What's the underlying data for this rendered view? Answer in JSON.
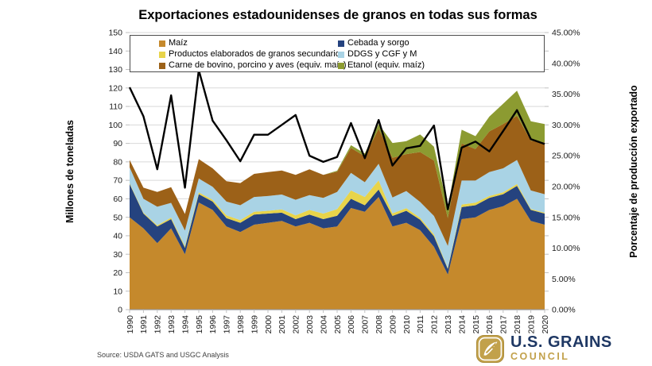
{
  "title": "Exportaciones estadounidenses de granos en todas sus formas",
  "source": "Source: USDA GATS and USGC Analysis",
  "logo": {
    "line1": "U.S. GRAINS",
    "line2": "COUNCIL",
    "gold": "#c2a14b",
    "navy": "#1f3864"
  },
  "chart_data": {
    "type": "area",
    "stacked": true,
    "title": "Exportaciones estadounidenses de granos en todas sus formas",
    "grid": true,
    "legend_position": "top",
    "left_axis": {
      "label": "Millones de toneladas",
      "min": 0,
      "max": 150,
      "step": 10
    },
    "right_axis": {
      "label": "Porcentaje de producción exportado",
      "min": 0,
      "max": 45,
      "step": 5
    },
    "years": [
      1990,
      1991,
      1992,
      1993,
      1994,
      1995,
      1996,
      1997,
      1998,
      1999,
      2000,
      2001,
      2002,
      2003,
      2004,
      2005,
      2006,
      2007,
      2008,
      2009,
      2010,
      2011,
      2012,
      2013,
      2014,
      2015,
      2016,
      2017,
      2018,
      2019,
      2020
    ],
    "series": [
      {
        "id": "maiz",
        "name": "Maíz",
        "color": "#c5892c",
        "values": [
          50,
          44,
          36,
          44,
          30,
          58,
          54,
          45,
          42,
          46,
          47,
          48,
          45,
          47,
          44,
          45,
          55,
          53,
          61,
          45,
          47,
          43,
          34,
          19,
          49,
          50,
          54,
          56,
          60,
          48,
          46
        ]
      },
      {
        "id": "cebada-y-sorgo",
        "name": "Cebada y sorgo",
        "color": "#25437f",
        "values": [
          18,
          8,
          9,
          5,
          3.5,
          4.5,
          4.5,
          4.5,
          5,
          5.5,
          5,
          4.5,
          4,
          4.5,
          5,
          5.8,
          5,
          3.5,
          4,
          5.7,
          6.5,
          5.7,
          5.7,
          3,
          6.5,
          6.5,
          6.5,
          6.5,
          7,
          6,
          6
        ]
      },
      {
        "id": "productos-elaborados",
        "name": "Productos elaborados de granos secundarios",
        "color": "#e8d44a",
        "values": [
          0.5,
          0.5,
          0.7,
          0.8,
          0.8,
          1,
          1,
          1.5,
          1.5,
          1.5,
          1.5,
          1.8,
          2,
          2.5,
          3,
          3.6,
          4.5,
          4.5,
          5,
          1.4,
          1.4,
          1,
          1,
          0.5,
          1.4,
          1.4,
          1,
          1,
          1,
          0.5,
          0.5
        ]
      },
      {
        "id": "ddgs",
        "name": "DDGS y CGF y M",
        "color": "#a9d3e5",
        "values": [
          8.5,
          7.5,
          10,
          8,
          8.5,
          7.5,
          7,
          7.5,
          8,
          8,
          8,
          8,
          8.5,
          8,
          8.5,
          9.3,
          9.5,
          8,
          9,
          8.6,
          9.3,
          8.6,
          10,
          12,
          13,
          12,
          13,
          13,
          13,
          10,
          10
        ]
      },
      {
        "id": "carne",
        "name": "Carne de bovino, porcino y aves (equiv. maíz)",
        "color": "#9c6118",
        "values": [
          4,
          6,
          8,
          8.5,
          9,
          10.5,
          10,
          11,
          12,
          12.5,
          13,
          13,
          13.5,
          14,
          12.5,
          11,
          13.5,
          14,
          19,
          21.5,
          20,
          27,
          30,
          15,
          20,
          17,
          22,
          24,
          24,
          27,
          28
        ]
      },
      {
        "id": "etanol",
        "name": "Etanol (equiv. maíz)",
        "color": "#8c9b31",
        "values": [
          0,
          0,
          0,
          0,
          0,
          0,
          0,
          0,
          0,
          0,
          0,
          0,
          0,
          0,
          0,
          0.5,
          1.5,
          1.5,
          2.5,
          8,
          7,
          9.5,
          7.5,
          5.5,
          7.5,
          7,
          8,
          11,
          13.5,
          10.5,
          10
        ]
      }
    ],
    "line": {
      "id": "porcentaje-exportado",
      "name": "Porcentaje de producción exportado",
      "color": "#000000",
      "axis": "right",
      "values": [
        36.1,
        31.4,
        22.8,
        34.8,
        19.8,
        38.9,
        30.7,
        27.5,
        24.1,
        28.4,
        28.4,
        30.0,
        31.6,
        25.0,
        24.0,
        24.8,
        30.3,
        24.6,
        30.8,
        23.4,
        26.2,
        26.6,
        29.9,
        16.3,
        26.3,
        27.3,
        25.7,
        29.0,
        32.4,
        27.7,
        26.9
      ]
    },
    "colors": {
      "grid": "#d9d9d9",
      "axis": "#999999",
      "tick": "#bfbfbf",
      "tick_text": "#1a1a1a"
    }
  }
}
